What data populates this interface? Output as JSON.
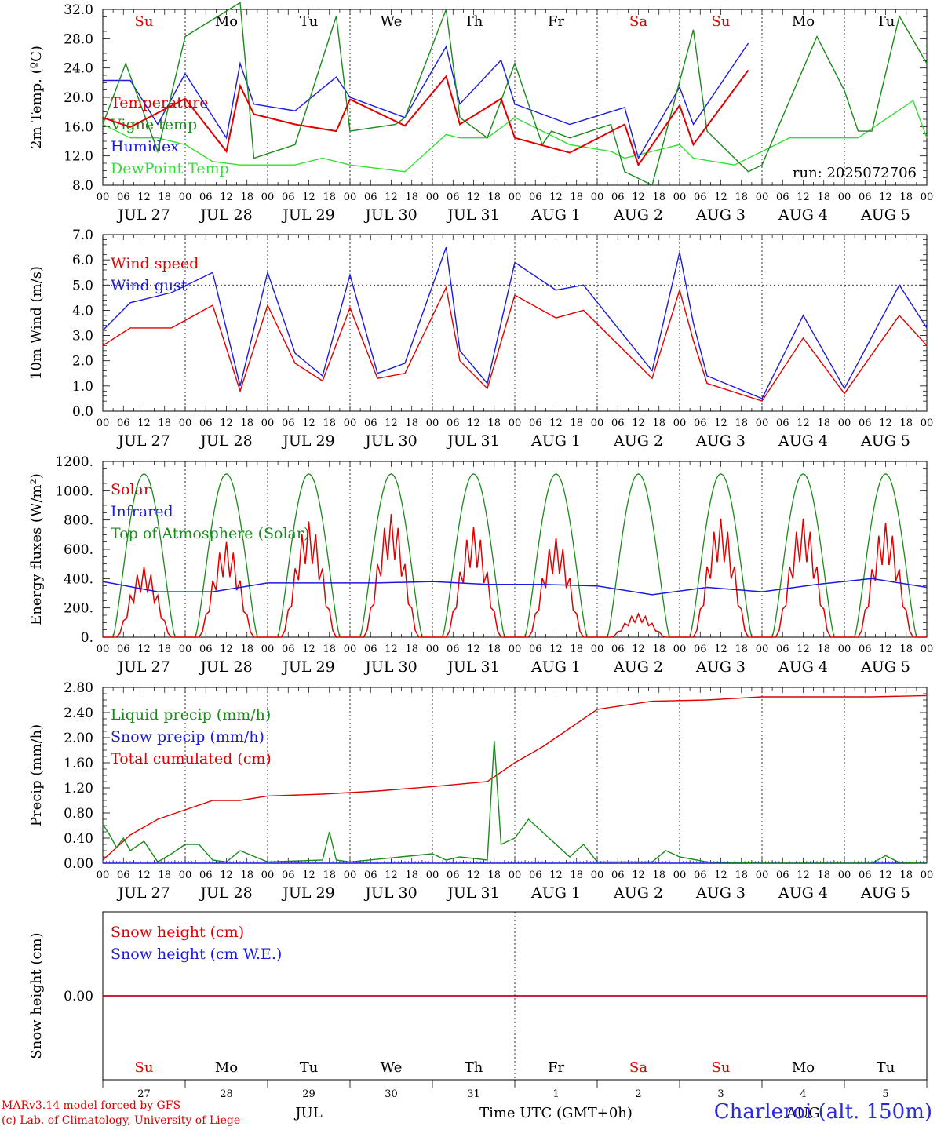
{
  "colors": {
    "red": "#e00000",
    "green": "#1a8a1a",
    "blue": "#1a1ae0",
    "lightgreen": "#33dd33",
    "black": "#000000"
  },
  "axis": {
    "hour_labels": [
      "00",
      "06",
      "12",
      "18"
    ],
    "end_hour_label": "00",
    "days": [
      "JUL 27",
      "JUL 28",
      "JUL 29",
      "JUL 30",
      "JUL 31",
      "AUG  1",
      "AUG  2",
      "AUG  3",
      "AUG  4",
      "AUG  5"
    ],
    "weekdays": [
      "Su",
      "Mo",
      "Tu",
      "We",
      "Th",
      "Fr",
      "Sa",
      "Su",
      "Mo",
      "Tu"
    ],
    "weekday_colors": [
      "red",
      "black",
      "black",
      "black",
      "black",
      "black",
      "red",
      "red",
      "black",
      "black"
    ],
    "day_numbers": [
      "27",
      "28",
      "29",
      "30",
      "31",
      "1",
      "2",
      "3",
      "4",
      "5"
    ],
    "month_labels": [
      "JUL",
      "AUG"
    ],
    "xlabel": "Time UTC (GMT+0h)"
  },
  "footer": {
    "line1": "MARv3.14 model forced by GFS",
    "line2": "(c) Lab. of Climatology, University of Liege",
    "station": "Charleroi (alt. 150m)"
  },
  "chart_data": [
    {
      "type": "line",
      "ylabel": "2m Temp. (ºC)",
      "ylim": [
        8,
        34
      ],
      "yticks": [
        "8.0",
        "12.0",
        "16.0",
        "20.0",
        "24.0",
        "28.0",
        "32.0"
      ],
      "annotation": "run: 2025072706",
      "x_unit": "hours since JUL 27 00 UTC",
      "series": [
        {
          "name": "Temperature",
          "color": "red",
          "x": [
            0,
            12,
            36,
            54,
            60,
            66,
            84,
            102,
            108,
            132,
            150,
            156,
            174,
            180,
            204,
            228,
            234,
            252,
            258,
            282
          ],
          "y": [
            18,
            16.6,
            20.8,
            13,
            22.7,
            18.5,
            17,
            16,
            20.7,
            16.8,
            24.1,
            17,
            20.8,
            15,
            12.8,
            17,
            11,
            19.8,
            14,
            25
          ]
        },
        {
          "name": "Vigne temp",
          "color": "green",
          "x": [
            0,
            10,
            24,
            36,
            60,
            66,
            84,
            102,
            108,
            128,
            132,
            150,
            156,
            168,
            180,
            192,
            196,
            204,
            222,
            228,
            240,
            258,
            264,
            276,
            282,
            288,
            312,
            324,
            330,
            336,
            348,
            360
          ],
          "y": [
            17,
            26,
            13,
            30,
            35,
            12,
            14,
            33,
            16,
            17,
            18,
            34,
            18,
            15,
            26,
            14,
            16,
            15,
            17,
            10,
            8,
            31,
            16,
            12,
            10,
            11,
            30,
            22,
            16,
            16,
            33,
            26
          ]
        },
        {
          "name": "Humidex",
          "color": "blue",
          "x": [
            0,
            12,
            24,
            36,
            54,
            60,
            66,
            84,
            102,
            108,
            132,
            150,
            156,
            174,
            180,
            204,
            228,
            234,
            252,
            258,
            282
          ],
          "y": [
            23.5,
            23.5,
            17,
            24.5,
            15,
            26,
            20,
            19,
            24,
            21,
            18,
            28.5,
            20,
            26.5,
            20,
            17,
            19.5,
            12,
            22.5,
            17,
            29
          ]
        },
        {
          "name": "DewPoint Temp",
          "color": "lightgreen",
          "x": [
            0,
            12,
            24,
            36,
            48,
            60,
            72,
            84,
            96,
            108,
            132,
            150,
            156,
            168,
            180,
            204,
            222,
            228,
            252,
            258,
            276,
            300,
            324,
            330,
            354,
            360
          ],
          "y": [
            17,
            15,
            15,
            14,
            11.5,
            11,
            11,
            11,
            12,
            11,
            10,
            15.5,
            15,
            15,
            18,
            14,
            13,
            12,
            14,
            12,
            11,
            15,
            15,
            15,
            20.5,
            15
          ]
        }
      ]
    },
    {
      "type": "line",
      "ylabel": "10m Wind (m/s)",
      "ylim": [
        0,
        7
      ],
      "yticks": [
        "0.0",
        "1.0",
        "2.0",
        "3.0",
        "4.0",
        "5.0",
        "6.0",
        "7.0"
      ],
      "x_unit": "hours since JUL 27 00 UTC",
      "series": [
        {
          "name": "Wind speed",
          "color": "red",
          "x": [
            0,
            12,
            30,
            48,
            60,
            72,
            84,
            96,
            108,
            120,
            132,
            150,
            156,
            168,
            180,
            198,
            210,
            240,
            252,
            258,
            264,
            288,
            306,
            324,
            348,
            360
          ],
          "y": [
            2.6,
            3.3,
            3.3,
            4.2,
            0.8,
            4.2,
            1.9,
            1.2,
            4.1,
            1.3,
            1.5,
            4.9,
            2,
            0.9,
            4.6,
            3.7,
            4,
            1.3,
            4.8,
            2.8,
            1.1,
            0.4,
            2.9,
            0.7,
            3.8,
            2.6
          ]
        },
        {
          "name": "Wind gust",
          "color": "blue",
          "x": [
            0,
            12,
            30,
            48,
            60,
            72,
            84,
            96,
            108,
            120,
            132,
            150,
            156,
            168,
            180,
            198,
            210,
            240,
            252,
            258,
            264,
            288,
            306,
            324,
            348,
            360
          ],
          "y": [
            3.2,
            4.3,
            4.7,
            5.5,
            1,
            5.5,
            2.3,
            1.4,
            5.4,
            1.5,
            1.9,
            6.5,
            2.4,
            1.1,
            5.9,
            4.8,
            5,
            1.6,
            6.3,
            3.5,
            1.4,
            0.5,
            3.8,
            0.9,
            5,
            3.3
          ]
        }
      ]
    },
    {
      "type": "line",
      "ylabel": "Energy fluxes (W/m²)",
      "ylim": [
        0,
        1200
      ],
      "yticks": [
        "0.",
        "200.",
        "400.",
        "600.",
        "800.",
        "1000.",
        "1200."
      ],
      "x_unit": "hours since JUL 27 00 UTC",
      "series": [
        {
          "name": "Solar",
          "color": "red",
          "peaks": [
            480,
            650,
            790,
            840,
            750,
            680,
            160,
            810,
            810,
            780
          ]
        },
        {
          "name": "Infrared",
          "color": "blue",
          "x": [
            0,
            24,
            48,
            72,
            96,
            120,
            144,
            168,
            192,
            216,
            240,
            264,
            288,
            312,
            336,
            360
          ],
          "y": [
            380,
            310,
            310,
            370,
            370,
            370,
            380,
            360,
            360,
            350,
            290,
            340,
            310,
            360,
            400,
            340
          ]
        },
        {
          "name": "Top of Atmosphere (Solar)",
          "color": "green",
          "peak": 1115
        }
      ]
    },
    {
      "type": "line",
      "ylabel": "Precip (mm/h)",
      "ylim": [
        0,
        2.8
      ],
      "yticks": [
        "0.00",
        "0.40",
        "0.80",
        "1.20",
        "1.60",
        "2.00",
        "2.40",
        "2.80"
      ],
      "x_unit": "hours since JUL 27 00 UTC",
      "series": [
        {
          "name": "Liquid precip (mm/h)",
          "color": "green",
          "x": [
            0,
            3,
            6,
            9,
            12,
            18,
            24,
            30,
            36,
            42,
            48,
            54,
            60,
            72,
            96,
            99,
            102,
            108,
            144,
            150,
            156,
            168,
            171,
            174,
            180,
            186,
            192,
            204,
            210,
            216,
            240,
            246,
            252,
            264,
            288,
            336,
            342,
            348,
            360
          ],
          "y": [
            0.62,
            0.45,
            0.25,
            0.4,
            0.2,
            0.35,
            0.02,
            0.15,
            0.3,
            0.3,
            0.05,
            0.02,
            0.2,
            0.02,
            0.05,
            0.5,
            0.05,
            0.02,
            0.15,
            0.05,
            0.1,
            0.05,
            1.95,
            0.3,
            0.4,
            0.7,
            0.5,
            0.1,
            0.3,
            0.02,
            0.02,
            0.2,
            0.1,
            0.02,
            0,
            0,
            0.12,
            0.01,
            0
          ]
        },
        {
          "name": "Snow precip (mm/h)",
          "color": "blue",
          "x": [
            0,
            360
          ],
          "y": [
            0,
            0
          ]
        },
        {
          "name": "Total cumulated (cm)",
          "color": "red",
          "x": [
            0,
            12,
            24,
            36,
            48,
            60,
            72,
            96,
            120,
            144,
            168,
            180,
            192,
            204,
            216,
            240,
            264,
            288,
            336,
            360
          ],
          "y": [
            0.05,
            0.45,
            0.7,
            0.85,
            1,
            1,
            1.07,
            1.1,
            1.15,
            1.22,
            1.3,
            1.6,
            1.85,
            2.15,
            2.45,
            2.58,
            2.6,
            2.65,
            2.65,
            2.67
          ]
        }
      ]
    },
    {
      "type": "line",
      "ylabel": "Snow height (cm)",
      "yticks": [
        "0.00"
      ],
      "series": [
        {
          "name": "Snow height (cm)",
          "color": "red",
          "x": [
            0,
            360
          ],
          "y": [
            0,
            0
          ]
        },
        {
          "name": "Snow height (cm W.E.)",
          "color": "blue",
          "x": [
            0,
            360
          ],
          "y": [
            0,
            0
          ]
        }
      ]
    }
  ]
}
